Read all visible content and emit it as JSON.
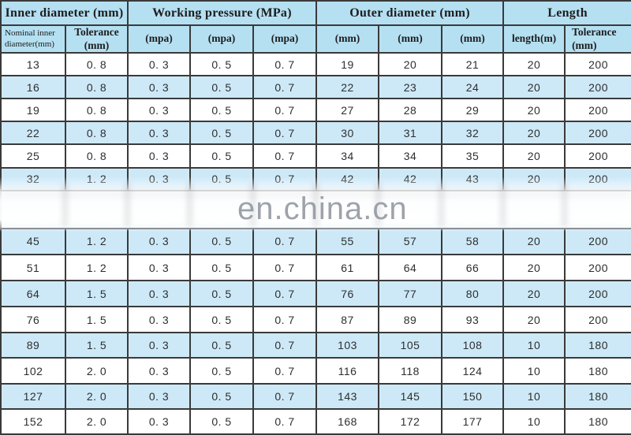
{
  "watermark": {
    "text": "en.china.cn",
    "after_row_index": 5,
    "obscured_row_index": 5
  },
  "table": {
    "group_headers": [
      {
        "label": "Inner diameter (mm)",
        "colspan": 2
      },
      {
        "label": "Working pressure (MPa)",
        "colspan": 3
      },
      {
        "label": "Outer diameter (mm)",
        "colspan": 3
      },
      {
        "label": "Length",
        "colspan": 2
      }
    ],
    "sub_headers": [
      "Nominal inner diameter(mm)",
      "Tolerance (mm)",
      "(mpa)",
      "(mpa)",
      "(mpa)",
      "(mm)",
      "(mm)",
      "(mm)",
      "length(m)",
      "Tolerance (mm)"
    ],
    "rows": [
      [
        "13",
        "0. 8",
        "0. 3",
        "0. 5",
        "0. 7",
        "19",
        "20",
        "21",
        "20",
        "200"
      ],
      [
        "16",
        "0. 8",
        "0. 3",
        "0. 5",
        "0. 7",
        "22",
        "23",
        "24",
        "20",
        "200"
      ],
      [
        "19",
        "0. 8",
        "0. 3",
        "0. 5",
        "0. 7",
        "27",
        "28",
        "29",
        "20",
        "200"
      ],
      [
        "22",
        "0. 8",
        "0. 3",
        "0. 5",
        "0. 7",
        "30",
        "31",
        "32",
        "20",
        "200"
      ],
      [
        "25",
        "0. 8",
        "0. 3",
        "0. 5",
        "0. 7",
        "34",
        "34",
        "35",
        "20",
        "200"
      ],
      [
        "32",
        "1. 2",
        "0. 3",
        "0. 5",
        "0. 7",
        "42",
        "42",
        "43",
        "20",
        "200"
      ],
      [
        "45",
        "1. 2",
        "0. 3",
        "0. 5",
        "0. 7",
        "55",
        "57",
        "58",
        "20",
        "200"
      ],
      [
        "51",
        "1. 2",
        "0. 3",
        "0. 5",
        "0. 7",
        "61",
        "64",
        "66",
        "20",
        "200"
      ],
      [
        "64",
        "1. 5",
        "0. 3",
        "0. 5",
        "0. 7",
        "76",
        "77",
        "80",
        "20",
        "200"
      ],
      [
        "76",
        "1. 5",
        "0. 3",
        "0. 5",
        "0. 7",
        "87",
        "89",
        "93",
        "20",
        "200"
      ],
      [
        "89",
        "1. 5",
        "0. 3",
        "0. 5",
        "0. 7",
        "103",
        "105",
        "108",
        "10",
        "180"
      ],
      [
        "102",
        "2. 0",
        "0. 3",
        "0. 5",
        "0. 7",
        "116",
        "118",
        "124",
        "10",
        "180"
      ],
      [
        "127",
        "2. 0",
        "0. 3",
        "0. 5",
        "0. 7",
        "143",
        "145",
        "150",
        "10",
        "180"
      ],
      [
        "152",
        "2. 0",
        "0. 3",
        "0. 5",
        "0. 7",
        "168",
        "172",
        "177",
        "10",
        "180"
      ]
    ],
    "colors": {
      "header_bg": "#b5e0f2",
      "shaded_row_bg": "#cde9f8",
      "border": "#3a3a3a",
      "watermark_text": "#8d949c"
    }
  }
}
